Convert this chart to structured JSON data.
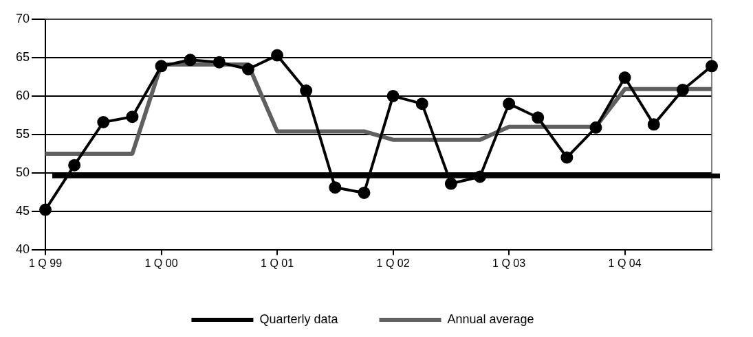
{
  "chart_data": {
    "type": "line",
    "categories": [
      "1 Q 99",
      null,
      null,
      null,
      "1 Q 00",
      null,
      null,
      null,
      "1 Q 01",
      null,
      null,
      null,
      "1 Q 02",
      null,
      null,
      null,
      "1 Q 03",
      null,
      null,
      null,
      "1 Q 04",
      null,
      null,
      null
    ],
    "series": [
      {
        "name": "Quarterly data",
        "color": "#000000",
        "marker": "circle",
        "values": [
          45.2,
          51,
          56.6,
          57.3,
          63.9,
          64.7,
          64.4,
          63.5,
          65.3,
          60.7,
          48.1,
          47.4,
          60,
          59,
          48.6,
          49.5,
          59,
          57.2,
          52,
          55.9,
          62.4,
          56.3,
          60.8,
          63.9
        ]
      },
      {
        "name": "Annual average",
        "color": "#606060",
        "marker": "none",
        "values": [
          52.5,
          52.5,
          52.5,
          52.5,
          64.1,
          64.1,
          64.1,
          64.1,
          55.4,
          55.4,
          55.4,
          55.4,
          54.3,
          54.3,
          54.3,
          54.3,
          56,
          56,
          56,
          56,
          60.9,
          60.9,
          60.9,
          60.9
        ]
      }
    ],
    "ylim": [
      40,
      70
    ],
    "yticks": [
      40,
      45,
      50,
      55,
      60,
      65,
      70
    ],
    "ref_lines": [
      {
        "axis": "y",
        "value": 49.6,
        "color": "#000000"
      }
    ],
    "grid": "y",
    "legend": "bottom"
  }
}
